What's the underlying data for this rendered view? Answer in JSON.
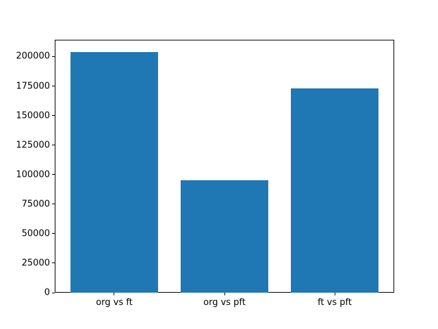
{
  "chart_data": {
    "type": "bar",
    "title": "",
    "xlabel": "",
    "ylabel": "",
    "categories": [
      "org vs ft",
      "org vs pft",
      "ft vs pft"
    ],
    "values": [
      204000,
      95000,
      173000
    ],
    "yticks": [
      0,
      25000,
      50000,
      75000,
      100000,
      125000,
      150000,
      175000,
      200000
    ],
    "ylim": [
      0,
      214200
    ],
    "grid": false,
    "legend": null,
    "bar_color": "#1f77b4",
    "axis_color": "#000000",
    "background_color": "#ffffff"
  }
}
